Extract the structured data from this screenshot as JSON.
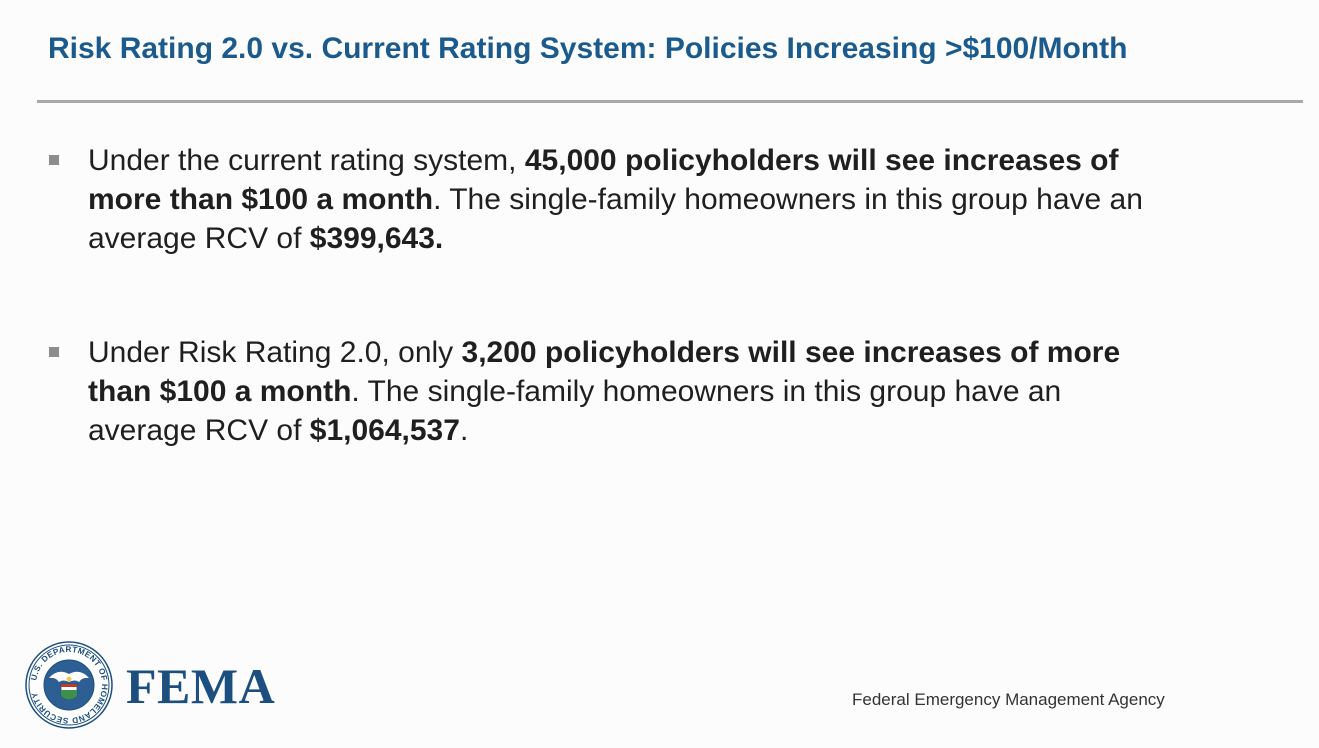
{
  "title": "Risk Rating 2.0 vs. Current Rating System: Policies Increasing >$100/Month",
  "bullets": [
    {
      "segments": [
        {
          "text": "Under the current rating system, ",
          "bold": false
        },
        {
          "text": "45,000 policyholders will see increases of more than $100 a month",
          "bold": true
        },
        {
          "text": ". The single-family homeowners in this group have an average RCV of ",
          "bold": false
        },
        {
          "text": "$399,643.",
          "bold": true
        }
      ]
    },
    {
      "segments": [
        {
          "text": "Under Risk Rating 2.0, only ",
          "bold": false
        },
        {
          "text": "3,200 policyholders will see increases of more than $100 a month",
          "bold": true
        },
        {
          "text": ". The single-family homeowners in this group have an average RCV of ",
          "bold": false
        },
        {
          "text": "$1,064,537",
          "bold": true
        },
        {
          "text": ".",
          "bold": false
        }
      ]
    }
  ],
  "footer": {
    "seal_text": "U.S. DEPARTMENT OF HOMELAND SECURITY",
    "logo_text": "FEMA",
    "agency": "Federal Emergency Management Agency"
  },
  "colors": {
    "title": "#1b5a8c",
    "logo": "#1c4f80",
    "rule": "#a9a9a9",
    "bullet_marker": "#8c8c8c"
  }
}
